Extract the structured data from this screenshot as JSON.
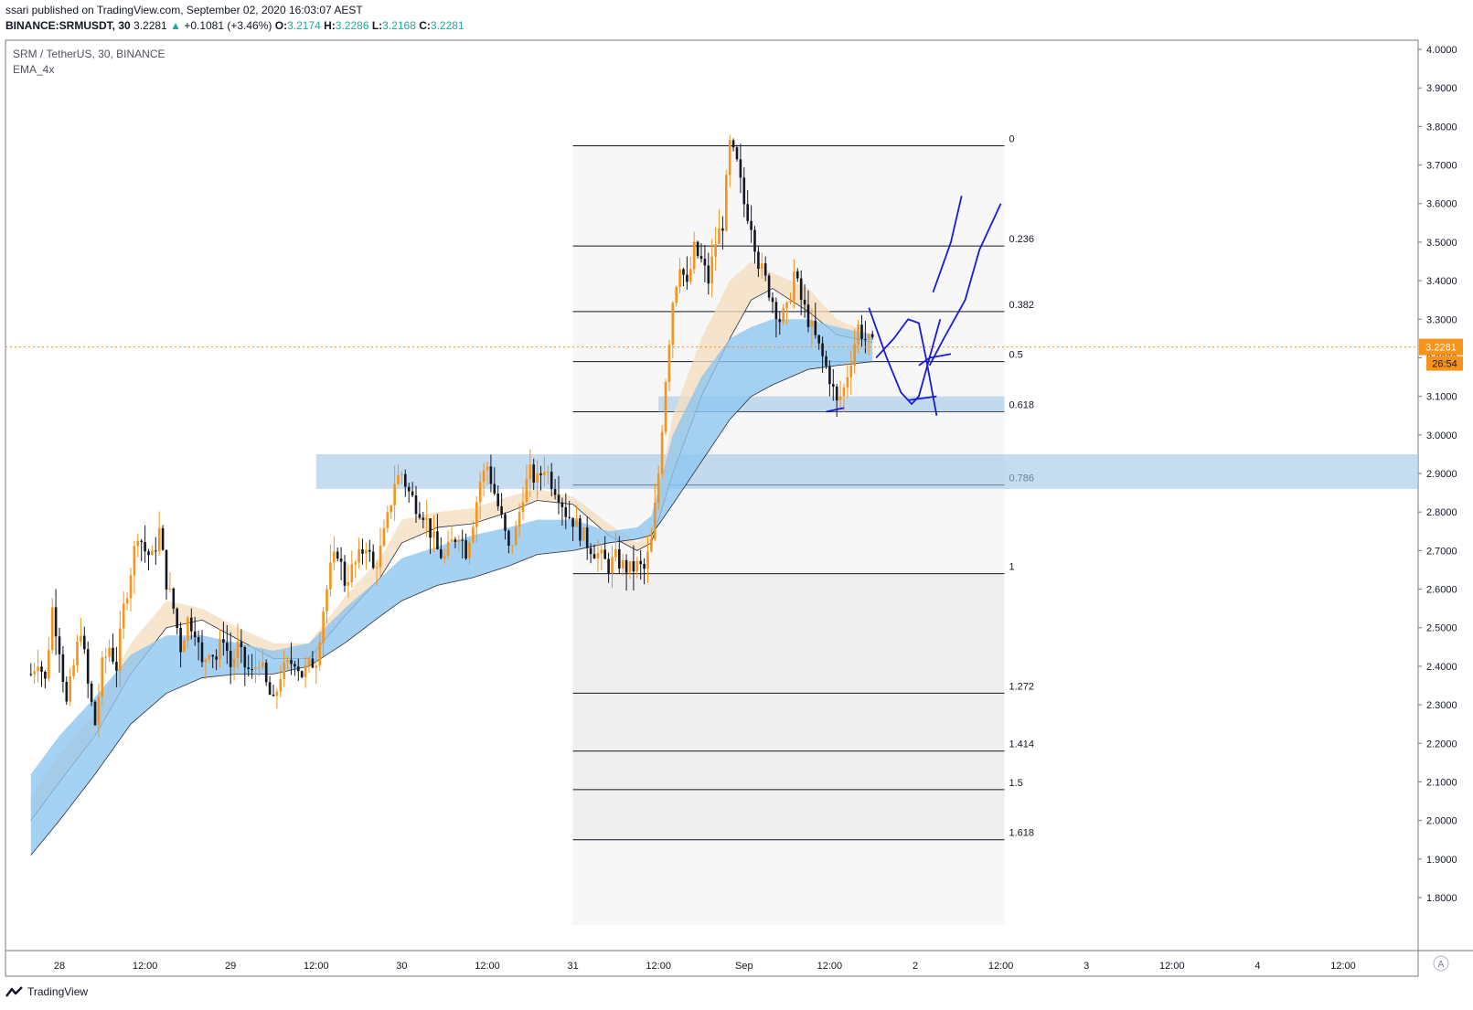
{
  "header": {
    "published": "ssari published on TradingView.com, September 02, 2020 16:03:07 AEST",
    "symbol": "BINANCE:SRMUSDT, 30",
    "last": "3.2281",
    "arrow": "▲",
    "change": "+0.1081 (+3.46%)",
    "o_label": "O:",
    "o": "3.2174",
    "h_label": "H:",
    "h": "3.2286",
    "l_label": "L:",
    "l": "3.2168",
    "c_label": "C:",
    "c": "3.2281"
  },
  "legend": {
    "title": "SRM / TetherUS, 30, BINANCE",
    "indicator": "EMA_4x"
  },
  "price_tag": {
    "price": "3.2281",
    "countdown": "26:54"
  },
  "brand": "TradingView",
  "colors": {
    "up": "#f7931a",
    "down": "#131722",
    "zone": "#9fc5e8",
    "ema_fast": "#f4dcbd",
    "ema_slow": "#8ec5f0",
    "drawing": "#1a1ad6",
    "price_line": "#f7931a"
  },
  "chart_data": {
    "type": "candlestick",
    "y_axis": {
      "range": [
        1.74,
        4.03
      ],
      "ticks": [
        "4.0000",
        "3.9000",
        "3.8000",
        "3.7000",
        "3.6000",
        "3.5000",
        "3.4000",
        "3.3000",
        "3.2000",
        "3.1000",
        "3.0000",
        "2.9000",
        "2.8000",
        "2.7000",
        "2.6000",
        "2.5000",
        "2.4000",
        "2.3000",
        "2.2000",
        "2.1000",
        "2.0000",
        "1.9000",
        "1.8000"
      ]
    },
    "x_axis": {
      "ticks": [
        {
          "label": "28",
          "bar": 0
        },
        {
          "label": "12:00",
          "bar": 24
        },
        {
          "label": "29",
          "bar": 48
        },
        {
          "label": "12:00",
          "bar": 72
        },
        {
          "label": "30",
          "bar": 96
        },
        {
          "label": "12:00",
          "bar": 120
        },
        {
          "label": "31",
          "bar": 144
        },
        {
          "label": "12:00",
          "bar": 168
        },
        {
          "label": "Sep",
          "bar": 192
        },
        {
          "label": "12:00",
          "bar": 216
        },
        {
          "label": "2",
          "bar": 240
        },
        {
          "label": "12:00",
          "bar": 264
        },
        {
          "label": "3",
          "bar": 288
        },
        {
          "label": "12:00",
          "bar": 312
        },
        {
          "label": "4",
          "bar": 336
        },
        {
          "label": "12:00",
          "bar": 360
        }
      ]
    },
    "close_path": [
      [
        -8,
        2.38
      ],
      [
        -6,
        2.42
      ],
      [
        -4,
        2.36
      ],
      [
        -2,
        2.55
      ],
      [
        0,
        2.45
      ],
      [
        2,
        2.3
      ],
      [
        4,
        2.4
      ],
      [
        6,
        2.5
      ],
      [
        8,
        2.35
      ],
      [
        10,
        2.25
      ],
      [
        12,
        2.4
      ],
      [
        14,
        2.45
      ],
      [
        16,
        2.4
      ],
      [
        18,
        2.55
      ],
      [
        20,
        2.65
      ],
      [
        22,
        2.75
      ],
      [
        24,
        2.7
      ],
      [
        26,
        2.68
      ],
      [
        28,
        2.75
      ],
      [
        30,
        2.62
      ],
      [
        32,
        2.55
      ],
      [
        34,
        2.45
      ],
      [
        36,
        2.52
      ],
      [
        38,
        2.5
      ],
      [
        40,
        2.4
      ],
      [
        42,
        2.45
      ],
      [
        44,
        2.42
      ],
      [
        46,
        2.48
      ],
      [
        48,
        2.4
      ],
      [
        50,
        2.45
      ],
      [
        52,
        2.4
      ],
      [
        54,
        2.38
      ],
      [
        56,
        2.42
      ],
      [
        58,
        2.35
      ],
      [
        60,
        2.3
      ],
      [
        62,
        2.38
      ],
      [
        64,
        2.4
      ],
      [
        66,
        2.42
      ],
      [
        68,
        2.38
      ],
      [
        70,
        2.4
      ],
      [
        72,
        2.42
      ],
      [
        74,
        2.55
      ],
      [
        76,
        2.65
      ],
      [
        78,
        2.7
      ],
      [
        80,
        2.62
      ],
      [
        82,
        2.65
      ],
      [
        84,
        2.68
      ],
      [
        86,
        2.72
      ],
      [
        88,
        2.65
      ],
      [
        90,
        2.7
      ],
      [
        92,
        2.78
      ],
      [
        94,
        2.88
      ],
      [
        96,
        2.9
      ],
      [
        98,
        2.85
      ],
      [
        100,
        2.82
      ],
      [
        102,
        2.8
      ],
      [
        104,
        2.75
      ],
      [
        106,
        2.7
      ],
      [
        108,
        2.68
      ],
      [
        110,
        2.72
      ],
      [
        112,
        2.75
      ],
      [
        114,
        2.7
      ],
      [
        116,
        2.78
      ],
      [
        118,
        2.88
      ],
      [
        120,
        2.92
      ],
      [
        122,
        2.85
      ],
      [
        124,
        2.78
      ],
      [
        126,
        2.7
      ],
      [
        128,
        2.75
      ],
      [
        130,
        2.85
      ],
      [
        132,
        2.9
      ],
      [
        134,
        2.88
      ],
      [
        136,
        2.92
      ],
      [
        138,
        2.88
      ],
      [
        140,
        2.85
      ],
      [
        142,
        2.8
      ],
      [
        144,
        2.78
      ],
      [
        146,
        2.75
      ],
      [
        148,
        2.72
      ],
      [
        150,
        2.7
      ],
      [
        152,
        2.68
      ],
      [
        154,
        2.66
      ],
      [
        156,
        2.68
      ],
      [
        158,
        2.66
      ],
      [
        160,
        2.65
      ],
      [
        162,
        2.66
      ],
      [
        164,
        2.65
      ],
      [
        166,
        2.72
      ],
      [
        168,
        2.9
      ],
      [
        170,
        3.15
      ],
      [
        172,
        3.35
      ],
      [
        174,
        3.45
      ],
      [
        176,
        3.38
      ],
      [
        178,
        3.48
      ],
      [
        180,
        3.45
      ],
      [
        182,
        3.4
      ],
      [
        184,
        3.5
      ],
      [
        186,
        3.55
      ],
      [
        188,
        3.75
      ],
      [
        190,
        3.7
      ],
      [
        192,
        3.6
      ],
      [
        194,
        3.55
      ],
      [
        196,
        3.45
      ],
      [
        198,
        3.4
      ],
      [
        200,
        3.35
      ],
      [
        202,
        3.3
      ],
      [
        204,
        3.32
      ],
      [
        206,
        3.42
      ],
      [
        208,
        3.35
      ],
      [
        210,
        3.3
      ],
      [
        212,
        3.25
      ],
      [
        214,
        3.2
      ],
      [
        216,
        3.15
      ],
      [
        218,
        3.08
      ],
      [
        220,
        3.12
      ],
      [
        222,
        3.2
      ],
      [
        224,
        3.28
      ],
      [
        226,
        3.25
      ],
      [
        228,
        3.23
      ]
    ],
    "ema_fast_band": [
      [
        -8,
        2.0,
        2.06
      ],
      [
        0,
        2.1,
        2.17
      ],
      [
        10,
        2.22,
        2.28
      ],
      [
        20,
        2.38,
        2.46
      ],
      [
        30,
        2.5,
        2.57
      ],
      [
        40,
        2.52,
        2.55
      ],
      [
        50,
        2.47,
        2.5
      ],
      [
        60,
        2.42,
        2.46
      ],
      [
        70,
        2.42,
        2.46
      ],
      [
        80,
        2.53,
        2.58
      ],
      [
        90,
        2.63,
        2.68
      ],
      [
        96,
        2.72,
        2.78
      ],
      [
        106,
        2.76,
        2.8
      ],
      [
        116,
        2.77,
        2.81
      ],
      [
        126,
        2.8,
        2.84
      ],
      [
        134,
        2.83,
        2.86
      ],
      [
        144,
        2.82,
        2.84
      ],
      [
        154,
        2.74,
        2.77
      ],
      [
        162,
        2.7,
        2.72
      ],
      [
        166,
        2.72,
        2.75
      ],
      [
        172,
        2.9,
        3.05
      ],
      [
        180,
        3.1,
        3.25
      ],
      [
        188,
        3.25,
        3.4
      ],
      [
        194,
        3.35,
        3.45
      ],
      [
        200,
        3.38,
        3.42
      ],
      [
        210,
        3.32,
        3.38
      ],
      [
        218,
        3.26,
        3.3
      ],
      [
        228,
        3.24,
        3.26
      ]
    ],
    "ema_slow_band": [
      [
        -8,
        1.91,
        2.12
      ],
      [
        0,
        2.0,
        2.22
      ],
      [
        10,
        2.12,
        2.32
      ],
      [
        20,
        2.25,
        2.43
      ],
      [
        30,
        2.33,
        2.48
      ],
      [
        40,
        2.37,
        2.48
      ],
      [
        50,
        2.38,
        2.46
      ],
      [
        60,
        2.38,
        2.44
      ],
      [
        70,
        2.4,
        2.46
      ],
      [
        80,
        2.46,
        2.55
      ],
      [
        90,
        2.53,
        2.63
      ],
      [
        96,
        2.57,
        2.68
      ],
      [
        106,
        2.61,
        2.71
      ],
      [
        116,
        2.63,
        2.74
      ],
      [
        126,
        2.66,
        2.76
      ],
      [
        134,
        2.69,
        2.78
      ],
      [
        144,
        2.7,
        2.78
      ],
      [
        154,
        2.72,
        2.75
      ],
      [
        162,
        2.73,
        2.76
      ],
      [
        166,
        2.74,
        2.79
      ],
      [
        172,
        2.82,
        3.0
      ],
      [
        180,
        2.93,
        3.15
      ],
      [
        188,
        3.04,
        3.25
      ],
      [
        194,
        3.1,
        3.28
      ],
      [
        200,
        3.13,
        3.3
      ],
      [
        210,
        3.17,
        3.3
      ],
      [
        218,
        3.18,
        3.28
      ],
      [
        228,
        3.19,
        3.26
      ]
    ],
    "fibonacci": {
      "from_bar": 144,
      "to_bar": 265,
      "levels": [
        {
          "label": "0",
          "price": 3.75
        },
        {
          "label": "0.236",
          "price": 3.49
        },
        {
          "label": "0.382",
          "price": 3.32
        },
        {
          "label": "0.5",
          "price": 3.19
        },
        {
          "label": "0.618",
          "price": 3.06
        },
        {
          "label": "0.786",
          "price": 2.87
        },
        {
          "label": "1",
          "price": 2.64
        },
        {
          "label": "1.272",
          "price": 2.33
        },
        {
          "label": "1.414",
          "price": 2.18
        },
        {
          "label": "1.5",
          "price": 2.08
        },
        {
          "label": "1.618",
          "price": 1.95
        }
      ]
    },
    "zones": [
      {
        "from_bar": 72,
        "to_bar": 390,
        "low": 2.86,
        "high": 2.95
      },
      {
        "from_bar": 168,
        "to_bar": 265,
        "low": 3.06,
        "high": 3.1
      }
    ],
    "last_price": 3.2281
  }
}
